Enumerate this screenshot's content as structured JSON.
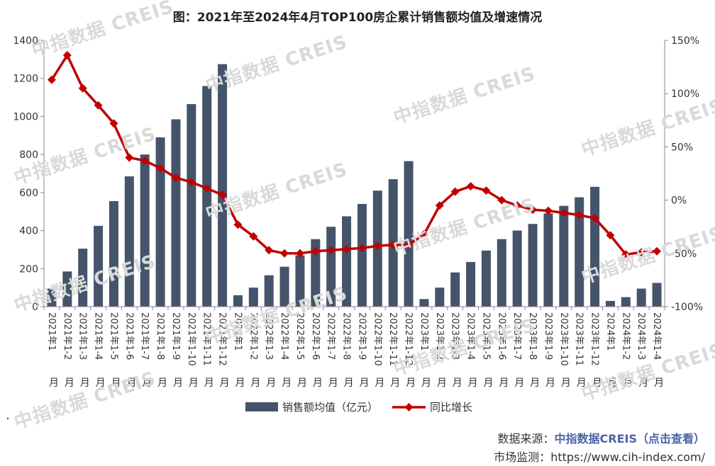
{
  "title": "图：2021年至2024年4月TOP100房企累计销售额均值及增速情况",
  "watermark": "中指数据 CREIS",
  "source": {
    "label": "数据来源：",
    "link": "中指数据CREIS（点击查看）"
  },
  "monitor": {
    "label": "市场监测：",
    "url": "https://www.cih-index.com/"
  },
  "chart_data": {
    "type": "bar+line",
    "title": "图：2021年至2024年4月TOP100房企累计销售额均值及增速情况",
    "categories": [
      "2021年1月",
      "2021年1-2月",
      "2021年1-3月",
      "2021年1-4月",
      "2021年1-5月",
      "2021年1-6月",
      "2021年1-7月",
      "2021年1-8月",
      "2021年1-9月",
      "2021年1-10月",
      "2021年1-11月",
      "2021年1-12月",
      "2022年1月",
      "2022年1-2月",
      "2022年1-3月",
      "2022年1-4月",
      "2022年1-5月",
      "2022年1-6月",
      "2022年1-7月",
      "2022年1-8月",
      "2022年1-9月",
      "2022年1-10月",
      "2022年1-11月",
      "2022年1-12月",
      "2023年1月",
      "2023年1-2月",
      "2023年1-3月",
      "2023年1-4月",
      "2023年1-5月",
      "2023年1-6月",
      "2023年1-7月",
      "2023年1-8月",
      "2023年1-9月",
      "2023年1-10月",
      "2023年1-11月",
      "2023年1-12月",
      "2024年1月",
      "2024年1-2月",
      "2024年1-3月",
      "2024年1-4月"
    ],
    "category_lines": [
      [
        "2021年1",
        "月"
      ],
      [
        "2021年1-2",
        "月"
      ],
      [
        "2021年1-3",
        "月"
      ],
      [
        "2021年1-4",
        "月"
      ],
      [
        "2021年1-5",
        "月"
      ],
      [
        "2021年1-6",
        "月"
      ],
      [
        "2021年1-7",
        "月"
      ],
      [
        "2021年1-8",
        "月"
      ],
      [
        "2021年1-9",
        "月"
      ],
      [
        "2021年1-10",
        "月"
      ],
      [
        "2021年1-11",
        "月"
      ],
      [
        "2021年1-12",
        "月"
      ],
      [
        "2022年1",
        "月"
      ],
      [
        "2022年1-2",
        "月"
      ],
      [
        "2022年1-3",
        "月"
      ],
      [
        "2022年1-4",
        "月"
      ],
      [
        "2022年1-5",
        "月"
      ],
      [
        "2022年1-6",
        "月"
      ],
      [
        "2022年1-7",
        "月"
      ],
      [
        "2022年1-8",
        "月"
      ],
      [
        "2022年1-9",
        "月"
      ],
      [
        "2022年1-10",
        "月"
      ],
      [
        "2022年1-11",
        "月"
      ],
      [
        "2022年1-12",
        "月"
      ],
      [
        "2023年1",
        "月"
      ],
      [
        "2023年1-2",
        "月"
      ],
      [
        "2023年1-3",
        "月"
      ],
      [
        "2023年1-4",
        "月"
      ],
      [
        "2023年1-5",
        "月"
      ],
      [
        "2023年1-6",
        "月"
      ],
      [
        "2023年1-7",
        "月"
      ],
      [
        "2023年1-8",
        "月"
      ],
      [
        "2023年1-9",
        "月"
      ],
      [
        "2023年1-10",
        "月"
      ],
      [
        "2023年1-11",
        "月"
      ],
      [
        "2023年1-12",
        "月"
      ],
      [
        "2024年1",
        "月"
      ],
      [
        "2024年1-2",
        "月"
      ],
      [
        "2024年1-3",
        "月"
      ],
      [
        "2024年1-4",
        "月"
      ]
    ],
    "series": [
      {
        "name": "销售额均值（亿元）",
        "type": "bar",
        "axis": "left",
        "color": "#44546a",
        "values": [
          95,
          185,
          305,
          425,
          555,
          685,
          800,
          890,
          985,
          1065,
          1160,
          1275,
          60,
          100,
          165,
          210,
          270,
          355,
          420,
          475,
          540,
          610,
          670,
          765,
          40,
          100,
          180,
          235,
          295,
          355,
          400,
          435,
          490,
          530,
          575,
          630,
          30,
          50,
          95,
          125
        ]
      },
      {
        "name": "同比增长",
        "type": "line",
        "axis": "right",
        "unit": "%",
        "color": "#c00000",
        "values": [
          113,
          136,
          105,
          89,
          72,
          40,
          37,
          30,
          21,
          17,
          11,
          5,
          -23,
          -34,
          -47,
          -50,
          -50,
          -48,
          -47,
          -46,
          -45,
          -43,
          -42,
          -42,
          -32,
          -5,
          8,
          13,
          9,
          0,
          -5,
          -9,
          -10,
          -12,
          -14,
          -17,
          -33,
          -51,
          -49,
          -48
        ]
      }
    ],
    "y_left": {
      "min": 0,
      "max": 1400,
      "ticks": [
        0,
        200,
        400,
        600,
        800,
        1000,
        1200,
        1400
      ]
    },
    "y_right": {
      "min": -100,
      "max": 150,
      "ticks": [
        -100,
        -50,
        0,
        50,
        100,
        150
      ],
      "tick_labels": [
        "-100%",
        "-50%",
        "0%",
        "50%",
        "100%",
        "150%"
      ]
    },
    "legend_position": "bottom"
  }
}
